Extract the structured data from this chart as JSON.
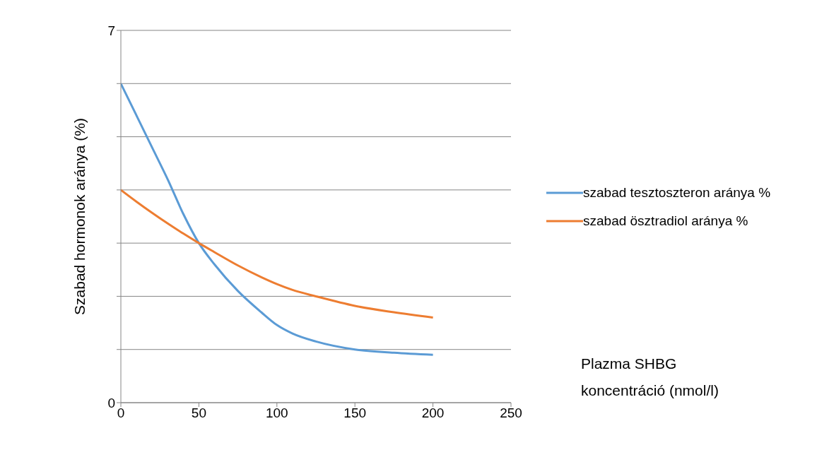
{
  "chart_data": {
    "type": "line",
    "ylabel": "Szabad hormonok aránya (%)",
    "annotations": [
      "Plazma SHBG koncentráció (nmol/l)"
    ],
    "x": [
      0,
      10,
      20,
      30,
      40,
      50,
      60,
      75,
      90,
      100,
      110,
      125,
      150,
      175,
      200
    ],
    "xlim": [
      0,
      250
    ],
    "xticks": [
      0,
      50,
      100,
      150,
      200,
      250
    ],
    "ylim": [
      0,
      7
    ],
    "yticks": [
      0,
      {
        "value": 1,
        "label": null
      },
      {
        "value": 2,
        "label": null
      },
      {
        "value": 3,
        "label": null
      },
      {
        "value": 4,
        "label": null
      },
      {
        "value": 5,
        "label": null
      },
      {
        "value": 6,
        "label": null
      },
      7
    ],
    "grid": "y",
    "legend": "right",
    "marker": "none",
    "line_style": "solid",
    "series": [
      {
        "name": "szabad tesztoszteron aránya %",
        "color": "#5b9bd5",
        "values": [
          6,
          5.4,
          4.8,
          4.2,
          3.55,
          3,
          2.6,
          2.1,
          1.7,
          1.46,
          1.3,
          1.15,
          1.0,
          0.94,
          0.9
        ]
      },
      {
        "name": "szabad ösztradiol aránya %",
        "color": "#ed7d31",
        "values": [
          4,
          3.78,
          3.57,
          3.37,
          3.18,
          3,
          2.83,
          2.58,
          2.36,
          2.23,
          2.12,
          2.0,
          1.82,
          1.7,
          1.6
        ]
      }
    ]
  }
}
